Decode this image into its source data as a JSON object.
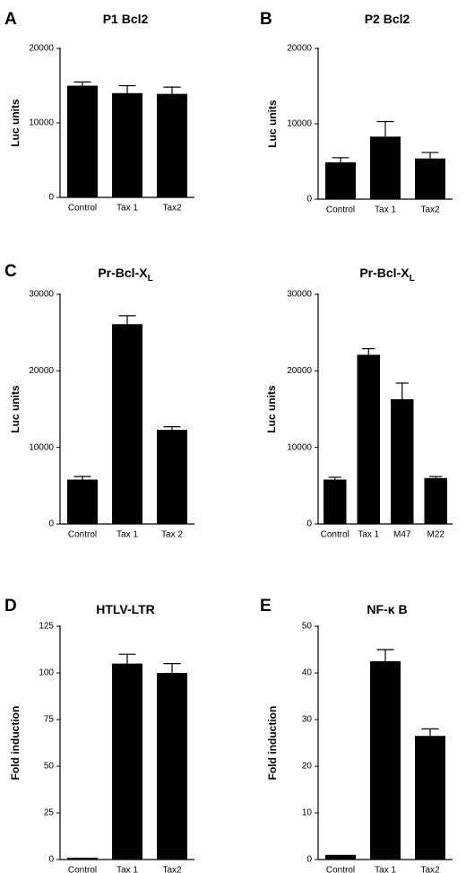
{
  "chart_data": [
    {
      "id": "A",
      "panel_letter": "A",
      "type": "bar",
      "title": "P1 Bcl2",
      "title_sub": "",
      "ylabel": "Luc units",
      "categories": [
        "Control",
        "Tax 1",
        "Tax2"
      ],
      "values": [
        15000,
        14000,
        13900
      ],
      "errors": [
        500,
        1000,
        900
      ],
      "ylim": [
        0,
        20000
      ],
      "yticks": [
        0,
        10000,
        20000
      ],
      "legend": "none",
      "grid": false
    },
    {
      "id": "B",
      "panel_letter": "B",
      "type": "bar",
      "title": "P2 Bcl2",
      "title_sub": "",
      "ylabel": "Luc units",
      "categories": [
        "Control",
        "Tax 1",
        "Tax2"
      ],
      "values": [
        4900,
        8300,
        5400
      ],
      "errors": [
        600,
        2000,
        800
      ],
      "ylim": [
        0,
        20000
      ],
      "yticks": [
        0,
        10000,
        20000
      ],
      "legend": "none",
      "grid": false
    },
    {
      "id": "C1",
      "panel_letter": "C",
      "type": "bar",
      "title": "Pr-Bcl-X",
      "title_sub": "L",
      "ylabel": "Luc units",
      "categories": [
        "Control",
        "Tax 1",
        "Tax 2"
      ],
      "values": [
        5800,
        26100,
        12300
      ],
      "errors": [
        400,
        1100,
        400
      ],
      "ylim": [
        0,
        30000
      ],
      "yticks": [
        0,
        10000,
        20000,
        30000
      ],
      "legend": "none",
      "grid": false
    },
    {
      "id": "C2",
      "panel_letter": "",
      "type": "bar",
      "title": "Pr-Bcl-X",
      "title_sub": "L",
      "ylabel": "Luc units",
      "categories": [
        "Control",
        "Tax 1",
        "M47",
        "M22"
      ],
      "values": [
        5800,
        22100,
        16300,
        6000
      ],
      "errors": [
        300,
        800,
        2100,
        200
      ],
      "ylim": [
        0,
        30000
      ],
      "yticks": [
        0,
        10000,
        20000,
        30000
      ],
      "legend": "none",
      "grid": false
    },
    {
      "id": "D",
      "panel_letter": "D",
      "type": "bar",
      "title": "HTLV-LTR",
      "title_sub": "",
      "ylabel": "Fold induction",
      "categories": [
        "Control",
        "Tax 1",
        "Tax2"
      ],
      "values": [
        1,
        105,
        100
      ],
      "errors": [
        0,
        5,
        5
      ],
      "ylim": [
        0,
        125
      ],
      "yticks": [
        0,
        25,
        50,
        75,
        100,
        125
      ],
      "legend": "none",
      "grid": false
    },
    {
      "id": "E",
      "panel_letter": "E",
      "type": "bar",
      "title": "NF-κ B",
      "title_sub": "",
      "ylabel": "Fold induction",
      "categories": [
        "Control",
        "Tax 1",
        "Tax2"
      ],
      "values": [
        1,
        42.5,
        26.5
      ],
      "errors": [
        0,
        2.5,
        1.5
      ],
      "ylim": [
        0,
        50
      ],
      "yticks": [
        0,
        10,
        20,
        30,
        40,
        50
      ],
      "legend": "none",
      "grid": false
    }
  ],
  "colors": {
    "bar": "#000000",
    "axis": "#000000",
    "background": "#ffffff"
  }
}
